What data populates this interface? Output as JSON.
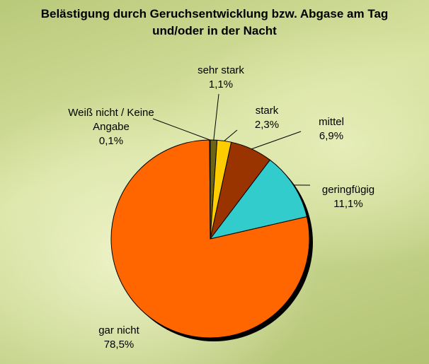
{
  "chart_data": {
    "type": "pie",
    "title": "Belästigung durch Geruchsentwicklung bzw. Abgase am Tag und/oder in der Nacht",
    "categories": [
      "sehr stark",
      "stark",
      "mittel",
      "geringfügig",
      "gar nicht",
      "Weiß nicht / Keine Angabe"
    ],
    "values": [
      1.1,
      2.3,
      6.9,
      11.1,
      78.5,
      0.1
    ],
    "value_labels": [
      "1,1%",
      "2,3%",
      "6,9%",
      "11,1%",
      "78,5%",
      "0,1%"
    ],
    "colors": [
      "#6e6418",
      "#ffcc00",
      "#993300",
      "#33cccc",
      "#ff6600",
      "#000080"
    ]
  }
}
